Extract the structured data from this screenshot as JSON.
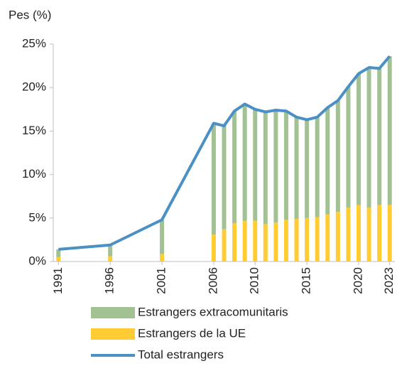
{
  "chart_data": {
    "type": "stacked-bar-line",
    "y_label": "Pes (%)",
    "x": [
      1991,
      1996,
      2001,
      2006,
      2007,
      2008,
      2009,
      2010,
      2011,
      2012,
      2013,
      2014,
      2015,
      2016,
      2017,
      2018,
      2019,
      2020,
      2021,
      2022,
      2023
    ],
    "series": [
      {
        "name": "Estrangers de la UE",
        "color": "#ffcc33",
        "kind": "bar",
        "values": [
          0.5,
          0.6,
          0.9,
          3.1,
          3.7,
          4.4,
          4.7,
          4.7,
          4.3,
          4.5,
          4.8,
          4.9,
          5.0,
          5.1,
          5.4,
          5.7,
          6.2,
          6.5,
          6.2,
          6.5,
          6.5
        ]
      },
      {
        "name": "Estrangers extracomunitaris",
        "color": "#a3c293",
        "kind": "bar",
        "values": [
          0.9,
          1.3,
          3.9,
          12.8,
          11.9,
          12.9,
          13.4,
          12.8,
          12.9,
          12.9,
          12.5,
          11.7,
          11.3,
          11.5,
          12.3,
          12.8,
          13.9,
          15.1,
          16.1,
          15.7,
          17.1
        ]
      },
      {
        "name": "Total estrangers",
        "color": "#4a90c4",
        "kind": "line",
        "values": [
          1.4,
          1.9,
          4.8,
          15.9,
          15.6,
          17.3,
          18.1,
          17.5,
          17.2,
          17.4,
          17.3,
          16.6,
          16.3,
          16.6,
          17.7,
          18.5,
          20.1,
          21.6,
          22.3,
          22.2,
          23.6
        ]
      }
    ],
    "legend_order": [
      1,
      0,
      2
    ],
    "xlim": [
      1990.5,
      2023.5
    ],
    "xticks": [
      1991,
      1996,
      2001,
      2006,
      2010,
      2015,
      2020,
      2023
    ],
    "ylim": [
      0,
      25
    ],
    "yticks": [
      {
        "value": 0,
        "label": "0%"
      },
      {
        "value": 5,
        "label": "5%"
      },
      {
        "value": 10,
        "label": "10%"
      },
      {
        "value": 15,
        "label": "15%"
      },
      {
        "value": 20,
        "label": "20%"
      },
      {
        "value": 25,
        "label": "25%"
      }
    ],
    "grid": false
  }
}
